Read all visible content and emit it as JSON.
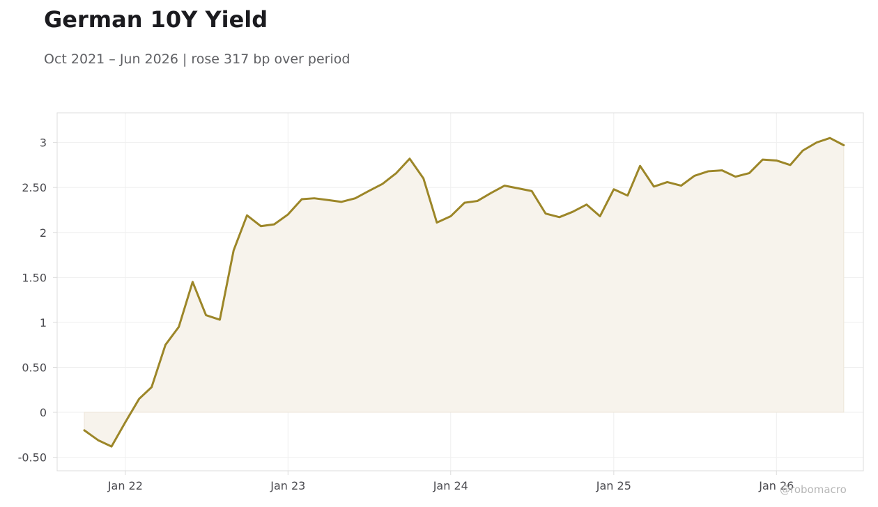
{
  "chart_title": "German 10Y Yield",
  "chart_subtitle": "Oct 2021 – Jun 2026 | rose 317 bp over period",
  "watermark": "@robomacro",
  "colors": {
    "line": "#9c8628",
    "area_fill": "#f7f3ec",
    "grid": "#efefef",
    "frame": "#dcdcdc",
    "text": "#4a4a4f"
  },
  "chart_data": {
    "type": "area",
    "title": "German 10Y Yield",
    "subtitle": "Oct 2021 – Jun 2026 | rose 317 bp over period",
    "xlabel": "",
    "ylabel": "",
    "grid": true,
    "legend": "none",
    "xlim": [
      "2021-08-01",
      "2026-07-15"
    ],
    "ylim": [
      -0.65,
      3.33
    ],
    "x_ticks": [
      {
        "date": "2022-01-01",
        "label": "Jan 22"
      },
      {
        "date": "2023-01-01",
        "label": "Jan 23"
      },
      {
        "date": "2024-01-01",
        "label": "Jan 24"
      },
      {
        "date": "2025-01-01",
        "label": "Jan 25"
      },
      {
        "date": "2026-01-01",
        "label": "Jan 26"
      }
    ],
    "y_ticks": [
      {
        "value": -0.5,
        "label": "-0.50"
      },
      {
        "value": 0,
        "label": "0"
      },
      {
        "value": 0.5,
        "label": "0.50"
      },
      {
        "value": 1,
        "label": "1"
      },
      {
        "value": 1.5,
        "label": "1.50"
      },
      {
        "value": 2,
        "label": "2"
      },
      {
        "value": 2.5,
        "label": "2.50"
      },
      {
        "value": 3,
        "label": "3"
      }
    ],
    "series": [
      {
        "x": [
          "2021-10-01",
          "2021-11-01",
          "2021-12-01",
          "2022-01-01",
          "2022-02-01",
          "2022-03-01",
          "2022-04-01",
          "2022-05-01",
          "2022-06-01",
          "2022-07-01",
          "2022-08-01",
          "2022-09-01",
          "2022-10-01",
          "2022-11-01",
          "2022-12-01",
          "2023-01-01",
          "2023-02-01",
          "2023-03-01",
          "2023-04-01",
          "2023-05-01",
          "2023-06-01",
          "2023-07-01",
          "2023-08-01",
          "2023-09-01",
          "2023-10-01",
          "2023-11-01",
          "2023-12-01",
          "2024-01-01",
          "2024-02-01",
          "2024-03-01",
          "2024-04-01",
          "2024-05-01",
          "2024-06-01",
          "2024-07-01",
          "2024-08-01",
          "2024-09-01",
          "2024-10-01",
          "2024-11-01",
          "2024-12-01",
          "2025-01-01",
          "2025-02-01",
          "2025-03-01",
          "2025-04-01",
          "2025-05-01",
          "2025-06-01",
          "2025-07-01",
          "2025-08-01",
          "2025-09-01",
          "2025-10-01",
          "2025-11-01",
          "2025-12-01",
          "2026-01-01",
          "2026-02-01",
          "2026-03-01",
          "2026-04-01",
          "2026-05-01",
          "2026-06-01"
        ],
        "values": [
          -0.2,
          -0.31,
          -0.38,
          -0.11,
          0.15,
          0.28,
          0.75,
          0.95,
          1.45,
          1.08,
          1.03,
          1.8,
          2.19,
          2.07,
          2.09,
          2.2,
          2.37,
          2.38,
          2.36,
          2.34,
          2.38,
          2.46,
          2.54,
          2.66,
          2.82,
          2.6,
          2.11,
          2.18,
          2.33,
          2.35,
          2.44,
          2.52,
          2.49,
          2.46,
          2.21,
          2.17,
          2.23,
          2.31,
          2.18,
          2.48,
          2.41,
          2.74,
          2.51,
          2.56,
          2.52,
          2.63,
          2.68,
          2.69,
          2.62,
          2.66,
          2.81,
          2.8,
          2.75,
          2.91,
          3.0,
          3.05,
          2.97
        ]
      }
    ]
  }
}
